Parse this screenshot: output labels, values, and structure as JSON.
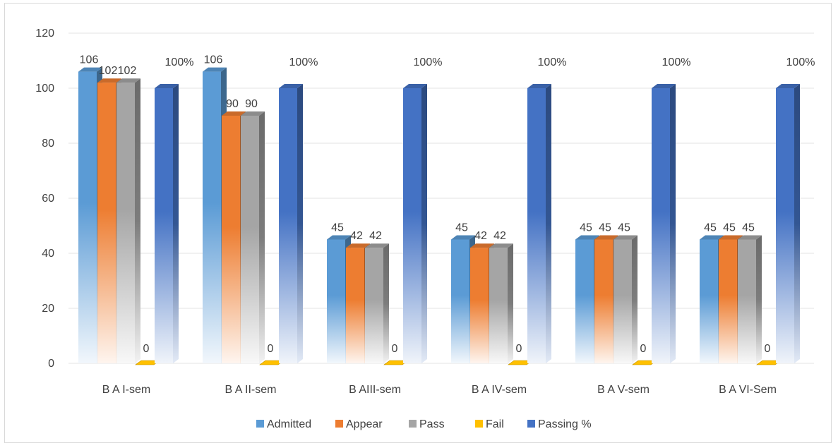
{
  "chart_data": {
    "type": "bar",
    "categories": [
      "B A I-sem",
      "B A II-sem",
      "B AIII-sem",
      "B A IV-sem",
      "B A V-sem",
      "B A VI-Sem"
    ],
    "series": [
      {
        "name": "Admitted",
        "values": [
          106,
          106,
          45,
          45,
          45,
          45
        ],
        "labels": [
          "106",
          "106",
          "45",
          "45",
          "45",
          "45"
        ],
        "color": "#5b9bd5"
      },
      {
        "name": "Appear",
        "values": [
          102,
          90,
          42,
          42,
          45,
          45
        ],
        "labels": [
          "102",
          "90",
          "42",
          "42",
          "45",
          "45"
        ],
        "color": "#ed7d31"
      },
      {
        "name": "Pass",
        "values": [
          102,
          90,
          42,
          42,
          45,
          45
        ],
        "labels": [
          "102",
          "90",
          "42",
          "42",
          "45",
          "45"
        ],
        "color": "#a5a5a5"
      },
      {
        "name": "Fail",
        "values": [
          0,
          0,
          0,
          0,
          0,
          0
        ],
        "labels": [
          "0",
          "0",
          "0",
          "0",
          "0",
          "0"
        ],
        "color": "#ffc000"
      },
      {
        "name": "Passing %",
        "values": [
          100,
          100,
          100,
          100,
          100,
          100
        ],
        "labels": [
          "100%",
          "100%",
          "100%",
          "100%",
          "100%",
          "100%"
        ],
        "color": "#4472c4"
      }
    ],
    "yticks": [
      "0",
      "20",
      "40",
      "60",
      "80",
      "100",
      "120"
    ],
    "ylim": [
      0,
      120
    ],
    "grid": true,
    "legend_position": "bottom",
    "style": "3d-gradient-columns"
  }
}
